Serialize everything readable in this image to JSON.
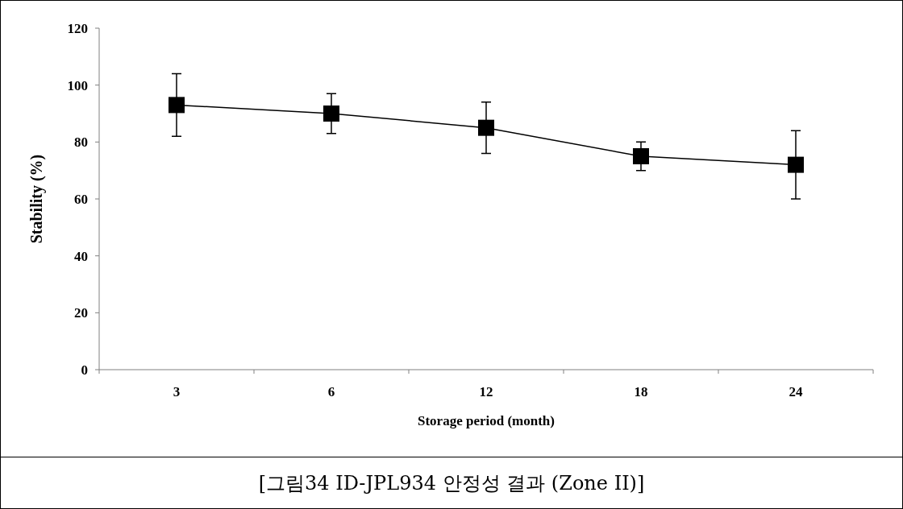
{
  "chart_data": {
    "type": "line",
    "xlabel": "Storage period (month)",
    "ylabel": "Stability (%)",
    "categories": [
      "3",
      "6",
      "12",
      "18",
      "24"
    ],
    "series": [
      {
        "color": "#000000",
        "values": [
          93,
          90,
          85,
          75,
          72
        ],
        "errors": [
          11,
          7,
          9,
          5,
          12
        ]
      }
    ],
    "ylim": [
      0,
      120
    ],
    "yticks": [
      0,
      20,
      40,
      60,
      80,
      100,
      120
    ],
    "marker": "square",
    "line_style": "solid",
    "annotations": [
      "[그림34 ID-JPL934 안정성 결과 (Zone II)]"
    ]
  }
}
